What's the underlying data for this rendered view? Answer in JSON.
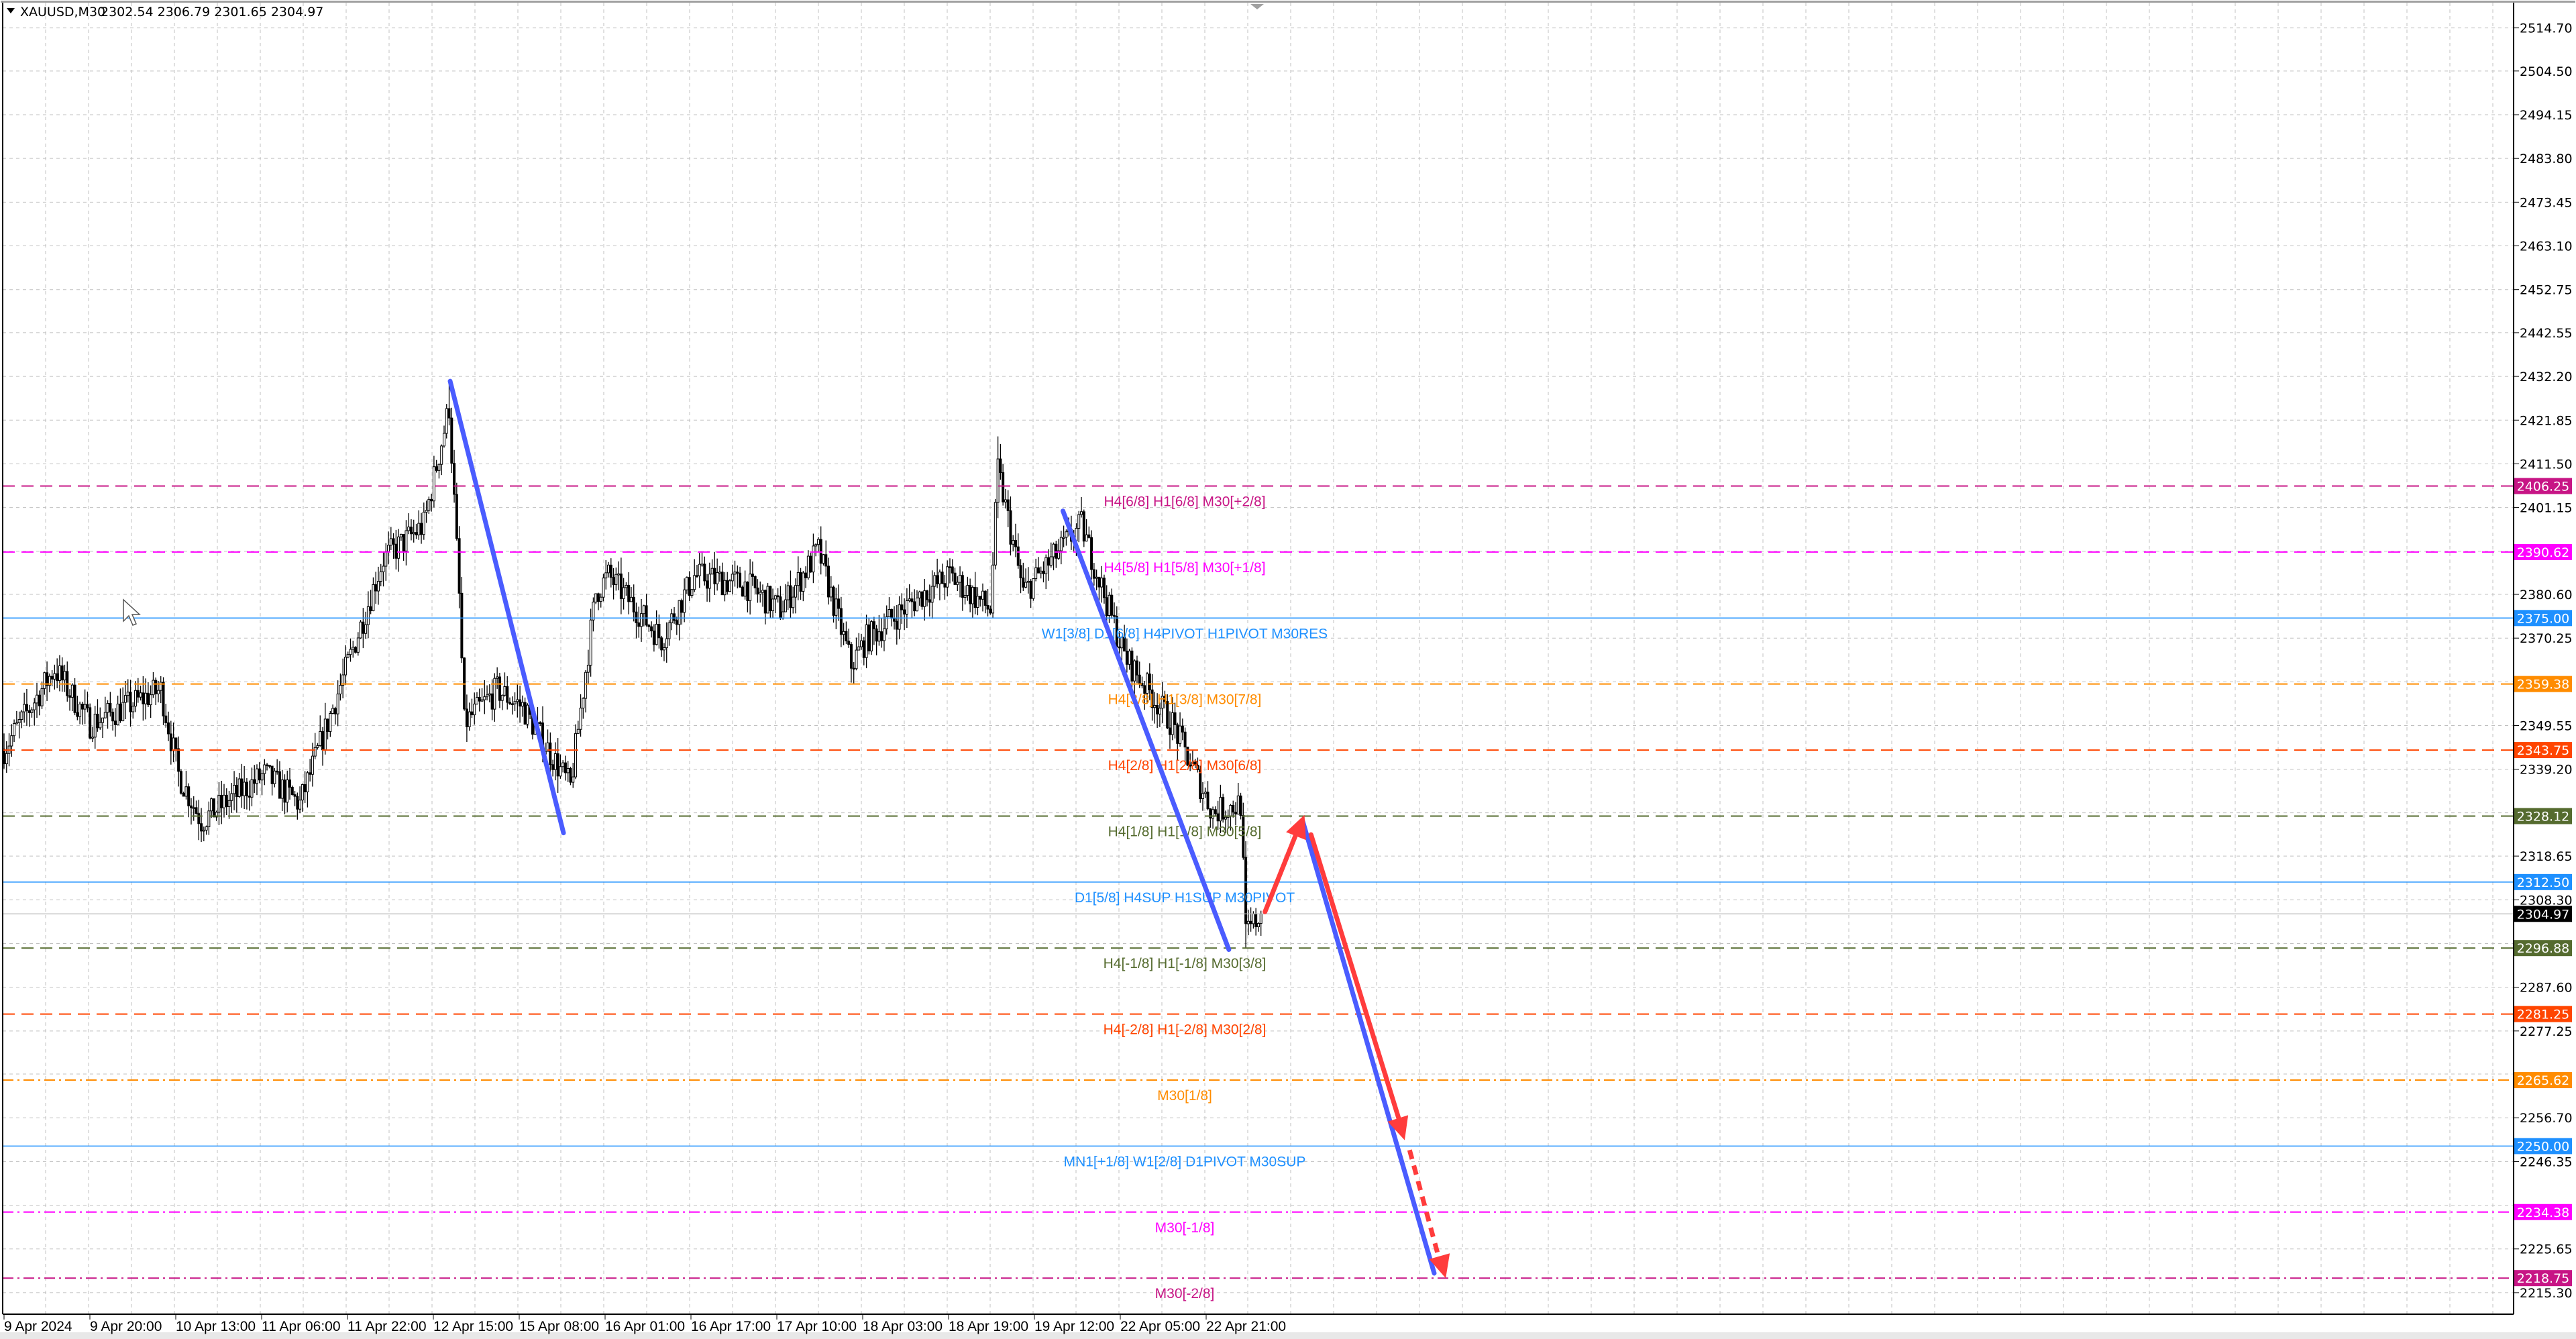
{
  "header": {
    "symbol": "XAUUSD,M30",
    "ohlc": "2302.54 2306.79 2301.65 2304.97"
  },
  "price_axis": {
    "ticks": [
      "2514.70",
      "2504.50",
      "2494.15",
      "2483.80",
      "2473.45",
      "2463.10",
      "2452.75",
      "2442.55",
      "2432.20",
      "2421.85",
      "2411.50",
      "2401.15",
      "2380.60",
      "2370.25",
      "2349.55",
      "2339.20",
      "2318.65",
      "2308.30",
      "2287.60",
      "2277.25",
      "2256.70",
      "2246.35",
      "2225.65",
      "2215.30"
    ],
    "current_price": "2304.97"
  },
  "time_axis": {
    "ticks": [
      "9 Apr 2024",
      "9 Apr 20:00",
      "10 Apr 13:00",
      "11 Apr 06:00",
      "11 Apr 22:00",
      "12 Apr 15:00",
      "15 Apr 08:00",
      "16 Apr 01:00",
      "16 Apr 17:00",
      "17 Apr 10:00",
      "18 Apr 03:00",
      "18 Apr 19:00",
      "19 Apr 12:00",
      "22 Apr 05:00",
      "22 Apr 21:00"
    ]
  },
  "levels": [
    {
      "price": "2406.25",
      "label": "H4[6/8] H1[6/8] M30[+2/8]",
      "color": "#c71585",
      "style": "dash"
    },
    {
      "price": "2390.62",
      "label": "H4[5/8] H1[5/8] M30[+1/8]",
      "color": "#ff00ff",
      "style": "dash"
    },
    {
      "price": "2375.00",
      "label": "W1[3/8] D1[6/8] H4PIVOT H1PIVOT M30RES",
      "color": "#1e90ff",
      "style": "solid"
    },
    {
      "price": "2359.38",
      "label": "H4[3/8] H1[3/8] M30[7/8]",
      "color": "#ff8c00",
      "style": "dash"
    },
    {
      "price": "2343.75",
      "label": "H4[2/8] H1[2/8] M30[6/8]",
      "color": "#ff4500",
      "style": "dash"
    },
    {
      "price": "2328.12",
      "label": "H4[1/8] H1[1/8] M30[5/8]",
      "color": "#556b2f",
      "style": "dash"
    },
    {
      "price": "2312.50",
      "label": "D1[5/8] H4SUP H1SUP M30PIVOT",
      "color": "#1e90ff",
      "style": "solid"
    },
    {
      "price": "2296.88",
      "label": "H4[-1/8] H1[-1/8] M30[3/8]",
      "color": "#556b2f",
      "style": "dash"
    },
    {
      "price": "2281.25",
      "label": "H4[-2/8] H1[-2/8] M30[2/8]",
      "color": "#ff4500",
      "style": "dash"
    },
    {
      "price": "2265.62",
      "label": "M30[1/8]",
      "color": "#ff8c00",
      "style": "dashdot"
    },
    {
      "price": "2250.00",
      "label": "MN1[+1/8] W1[2/8] D1PIVOT M30SUP",
      "color": "#1e90ff",
      "style": "solid"
    },
    {
      "price": "2234.38",
      "label": "M30[-1/8]",
      "color": "#ff00ff",
      "style": "dashdot"
    },
    {
      "price": "2218.75",
      "label": "M30[-2/8]",
      "color": "#c71585",
      "style": "dashdot"
    }
  ],
  "colors": {
    "trendline_blue": "#4a5cff",
    "arrow_red": "#ff3c3c",
    "grid": "#c0c0c0",
    "current_price_label": "#000000"
  }
}
